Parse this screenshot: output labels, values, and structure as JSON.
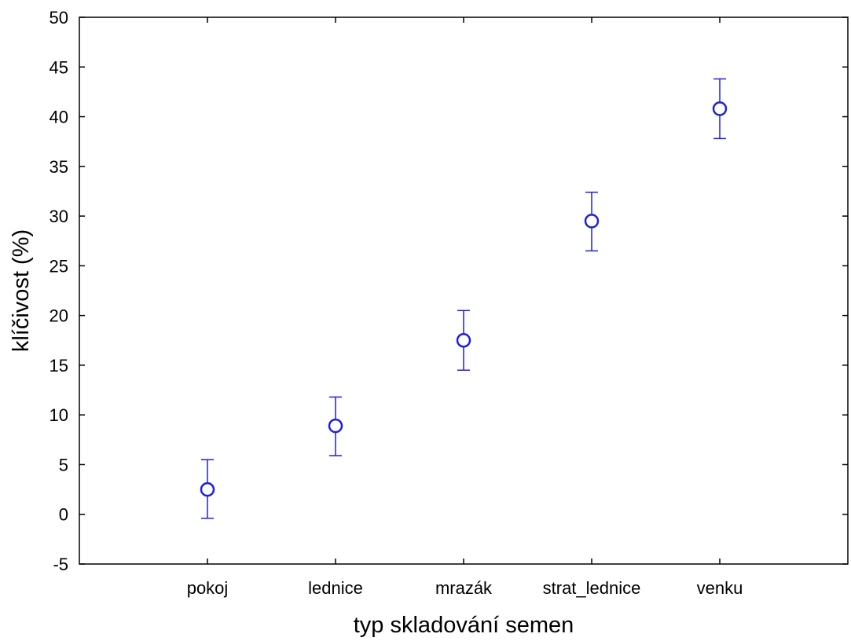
{
  "chart_data": {
    "type": "scatter",
    "xlabel": "typ skladování semen",
    "ylabel": "klíčivost (%)",
    "categories": [
      "pokoj",
      "lednice",
      "mrazák",
      "strat_lednice",
      "venku"
    ],
    "ylim": [
      -5,
      50
    ],
    "yticks": [
      "-5",
      "0",
      "5",
      "10",
      "15",
      "20",
      "25",
      "30",
      "35",
      "40",
      "45",
      "50"
    ],
    "grid": false,
    "series": [
      {
        "values": [
          2.5,
          8.9,
          17.5,
          29.5,
          40.8
        ],
        "error_low": [
          -0.4,
          5.9,
          14.5,
          26.5,
          37.8
        ],
        "error_high": [
          5.5,
          11.8,
          20.5,
          32.4,
          43.8
        ],
        "color": "#1f1fe0",
        "marker": "circle"
      }
    ]
  }
}
